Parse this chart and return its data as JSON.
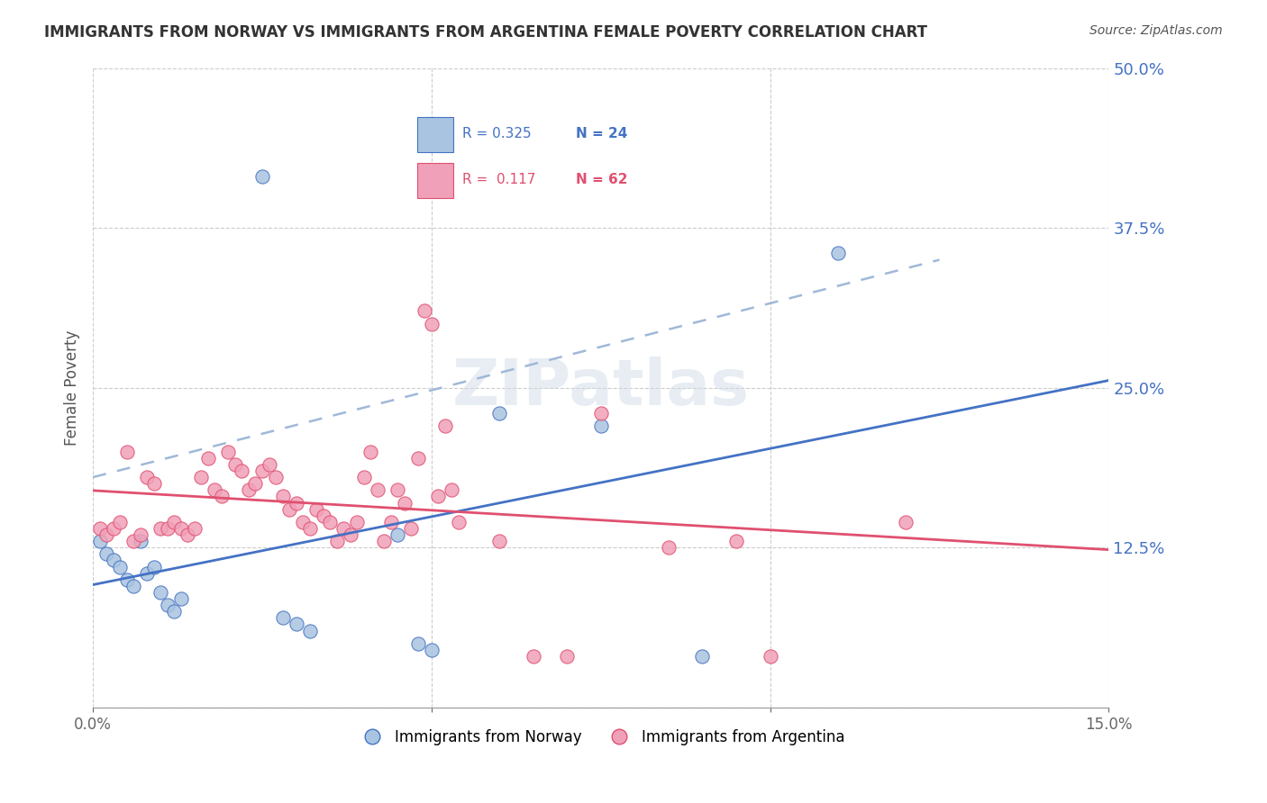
{
  "title": "IMMIGRANTS FROM NORWAY VS IMMIGRANTS FROM ARGENTINA FEMALE POVERTY CORRELATION CHART",
  "source": "Source: ZipAtlas.com",
  "xlabel": "",
  "ylabel": "Female Poverty",
  "norway_R": 0.325,
  "norway_N": 24,
  "argentina_R": 0.117,
  "argentina_N": 62,
  "norway_color": "#a8c4e0",
  "argentina_color": "#f0a0b8",
  "norway_line_color": "#4472c4",
  "argentina_line_color": "#e05070",
  "dashed_line_color": "#a0b8d8",
  "legend_norway_color": "#a8c4e0",
  "legend_argentina_color": "#f0a0b8",
  "xlim": [
    0.0,
    0.15
  ],
  "ylim": [
    0.0,
    0.5
  ],
  "yticks": [
    0.0,
    0.125,
    0.25,
    0.375,
    0.5
  ],
  "ytick_labels": [
    "",
    "12.5%",
    "25.0%",
    "37.5%",
    "50.0%"
  ],
  "xticks": [
    0.0,
    0.05,
    0.1,
    0.15
  ],
  "xtick_labels": [
    "0.0%",
    "",
    "",
    "15.0%"
  ],
  "watermark": "ZIPatlas",
  "norway_x": [
    0.001,
    0.002,
    0.003,
    0.004,
    0.005,
    0.006,
    0.007,
    0.008,
    0.009,
    0.01,
    0.011,
    0.012,
    0.013,
    0.025,
    0.028,
    0.03,
    0.032,
    0.045,
    0.048,
    0.05,
    0.06,
    0.075,
    0.09,
    0.11
  ],
  "norway_y": [
    0.13,
    0.12,
    0.115,
    0.11,
    0.1,
    0.095,
    0.13,
    0.105,
    0.11,
    0.09,
    0.08,
    0.075,
    0.085,
    0.415,
    0.07,
    0.065,
    0.06,
    0.135,
    0.05,
    0.045,
    0.23,
    0.22,
    0.04,
    0.355
  ],
  "argentina_x": [
    0.001,
    0.002,
    0.003,
    0.004,
    0.005,
    0.006,
    0.007,
    0.008,
    0.009,
    0.01,
    0.011,
    0.012,
    0.013,
    0.014,
    0.015,
    0.016,
    0.017,
    0.018,
    0.019,
    0.02,
    0.021,
    0.022,
    0.023,
    0.024,
    0.025,
    0.026,
    0.027,
    0.028,
    0.029,
    0.03,
    0.031,
    0.032,
    0.033,
    0.034,
    0.035,
    0.036,
    0.037,
    0.038,
    0.039,
    0.04,
    0.041,
    0.042,
    0.043,
    0.044,
    0.045,
    0.046,
    0.047,
    0.048,
    0.049,
    0.05,
    0.051,
    0.052,
    0.053,
    0.054,
    0.06,
    0.065,
    0.07,
    0.075,
    0.085,
    0.095,
    0.1,
    0.12
  ],
  "argentina_y": [
    0.14,
    0.135,
    0.14,
    0.145,
    0.2,
    0.13,
    0.135,
    0.18,
    0.175,
    0.14,
    0.14,
    0.145,
    0.14,
    0.135,
    0.14,
    0.18,
    0.195,
    0.17,
    0.165,
    0.2,
    0.19,
    0.185,
    0.17,
    0.175,
    0.185,
    0.19,
    0.18,
    0.165,
    0.155,
    0.16,
    0.145,
    0.14,
    0.155,
    0.15,
    0.145,
    0.13,
    0.14,
    0.135,
    0.145,
    0.18,
    0.2,
    0.17,
    0.13,
    0.145,
    0.17,
    0.16,
    0.14,
    0.195,
    0.31,
    0.3,
    0.165,
    0.22,
    0.17,
    0.145,
    0.13,
    0.04,
    0.04,
    0.23,
    0.125,
    0.13,
    0.04,
    0.145
  ]
}
